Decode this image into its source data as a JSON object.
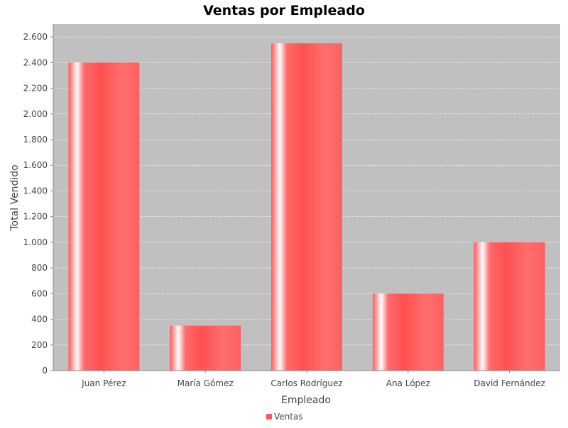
{
  "chart_data": {
    "type": "bar",
    "title": "Ventas por Empleado",
    "xlabel": "Empleado",
    "ylabel": "Total Vendido",
    "categories": [
      "Juan Pérez",
      "María Gómez",
      "Carlos Rodríguez",
      "Ana López",
      "David Fernández"
    ],
    "series": [
      {
        "name": "Ventas",
        "values": [
          2400,
          350,
          2550,
          600,
          1000
        ]
      }
    ],
    "ylim": [
      0,
      2700
    ],
    "yticks": [
      0,
      200,
      400,
      600,
      800,
      1000,
      1200,
      1400,
      1600,
      1800,
      2000,
      2200,
      2400,
      2600
    ],
    "ytick_labels": [
      "0",
      "200",
      "400",
      "600",
      "800",
      "1.000",
      "1.200",
      "1.400",
      "1.600",
      "1.800",
      "2.000",
      "2.200",
      "2.400",
      "2.600"
    ],
    "grid": true,
    "legend_position": "bottom-center",
    "colors": {
      "bar": "#ff5555",
      "plot_background": "#c0c0c0",
      "gridline": "#ffffff"
    }
  }
}
